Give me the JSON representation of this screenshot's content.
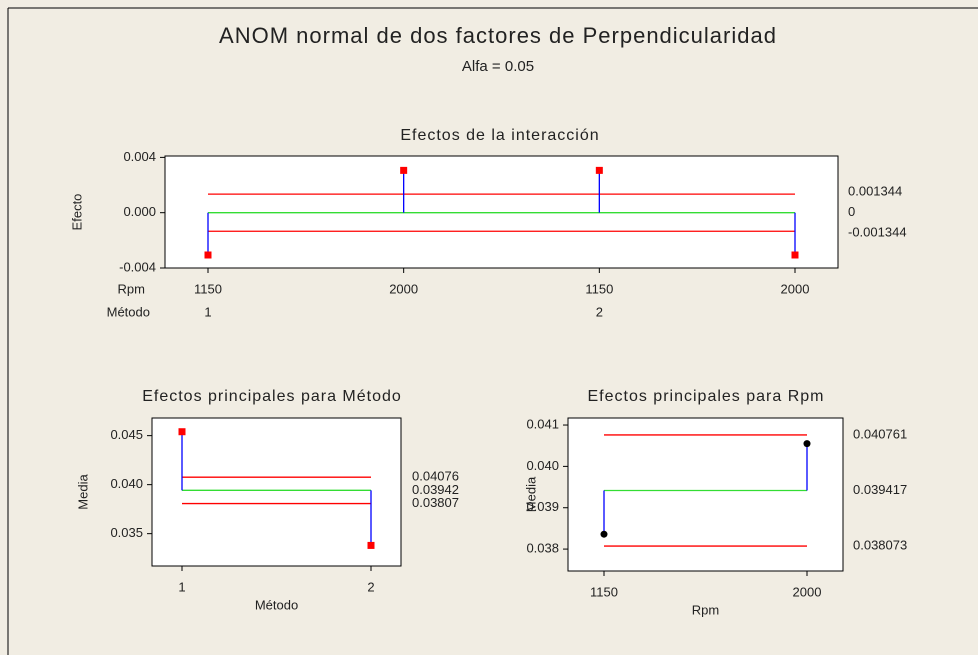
{
  "title": "ANOM normal de dos factores de Perpendicularidad",
  "subtitle": "Alfa = 0.05",
  "chart_data": [
    {
      "type": "anom",
      "title": "Efectos de la interacción",
      "ylabel": "Efecto",
      "categories_name": "Rpm",
      "categories": [
        "1150",
        "2000",
        "1150",
        "2000"
      ],
      "groups_name": "Método",
      "groups": [
        "1",
        null,
        "2",
        null
      ],
      "values": [
        -0.00306,
        0.00306,
        0.00306,
        -0.00306
      ],
      "ucl": 0.001344,
      "center": 0,
      "lcl": -0.001344,
      "ylim": [
        -0.004,
        0.0041
      ],
      "yticks": [
        {
          "value": 0.004,
          "label": "0.004"
        },
        {
          "value": 0,
          "label": "0.000"
        },
        {
          "value": -0.004,
          "label": "-0.004"
        }
      ],
      "marker": "square",
      "marker_color": "#ff0000",
      "center_color": "#33dd33",
      "limit_color": "#ff0000",
      "stem_color": "#0000ff"
    },
    {
      "type": "anom",
      "title": "Efectos principales para Método",
      "ylabel": "Media",
      "xlabel": "Método",
      "categories": [
        "1",
        "2"
      ],
      "values": [
        0.0454,
        0.0338
      ],
      "ucl": 0.04076,
      "center": 0.03942,
      "lcl": 0.03807,
      "ylim": [
        0.0317,
        0.0468
      ],
      "yticks": [
        0.045,
        {
          "value": 0.04,
          "label": "0.040"
        },
        0.035
      ],
      "marker": "square",
      "marker_color": "#ff0000",
      "center_color": "#33dd33",
      "limit_color": "#ff0000",
      "stem_color": "#0000ff"
    },
    {
      "type": "anom",
      "title": "Efectos principales para Rpm",
      "ylabel": "Media",
      "xlabel": "Rpm",
      "categories": [
        "1150",
        "2000"
      ],
      "values": [
        0.03836,
        0.04055
      ],
      "ucl": 0.040761,
      "center": 0.039417,
      "lcl": 0.038073,
      "ylim": [
        0.03747,
        0.04117
      ],
      "yticks": [
        0.041,
        {
          "value": 0.04,
          "label": "0.040"
        },
        0.039,
        0.038
      ],
      "marker": "circle",
      "marker_color": "#000000",
      "center_color": "#33dd33",
      "limit_color": "#ff0000",
      "stem_color": "#0000ff"
    }
  ]
}
